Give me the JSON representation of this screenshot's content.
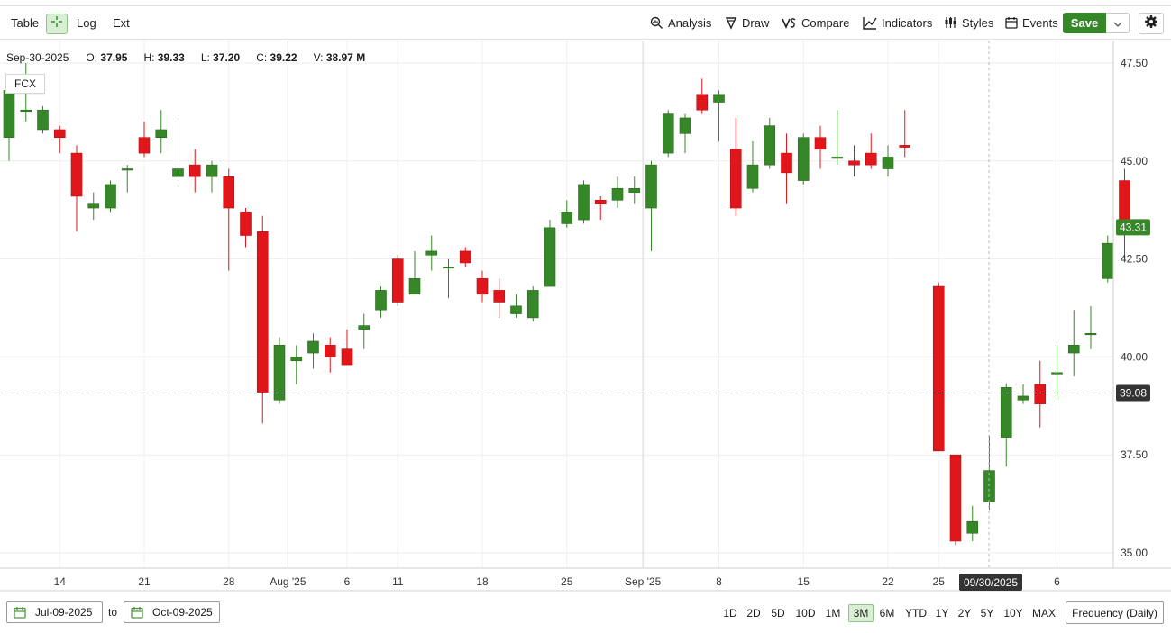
{
  "toolbar": {
    "table_label": "Table",
    "log_label": "Log",
    "ext_label": "Ext",
    "analysis_label": "Analysis",
    "draw_label": "Draw",
    "compare_label": "Compare",
    "indicators_label": "Indicators",
    "styles_label": "Styles",
    "events_label": "Events",
    "save_label": "Save"
  },
  "legend": {
    "date": "Sep-30-2025",
    "open_label": "O:",
    "open": "37.95",
    "high_label": "H:",
    "high": "39.33",
    "low_label": "L:",
    "low": "37.20",
    "close_label": "C:",
    "close": "39.22",
    "volume_label": "V:",
    "volume": "38.97 M"
  },
  "symbol": "FCX",
  "colors": {
    "up": "#368727",
    "down": "#e0161b",
    "accent": "#368727",
    "crosshair_tag": "#333333"
  },
  "chart_data": {
    "type": "candlestick",
    "y_range": [
      34.6,
      48.0
    ],
    "y_ticks": [
      "47.50",
      "45.00",
      "42.50",
      "40.00",
      "37.50",
      "35.00"
    ],
    "x_tick_labels": [
      "14",
      "21",
      "28",
      "Aug '25",
      "6",
      "11",
      "18",
      "25",
      "Sep '25",
      "8",
      "15",
      "22",
      "25",
      "6"
    ],
    "last_price": "43.31",
    "crosshair_price": "39.08",
    "crosshair_date": "09/30/2025",
    "candles": [
      {
        "o": 45.6,
        "h": 46.9,
        "l": 45.0,
        "c": 46.8
      },
      {
        "o": 46.3,
        "h": 47.5,
        "l": 46.0,
        "c": 46.3
      },
      {
        "o": 45.8,
        "h": 46.4,
        "l": 45.7,
        "c": 46.3
      },
      {
        "o": 45.8,
        "h": 45.9,
        "l": 45.2,
        "c": 45.6
      },
      {
        "o": 45.2,
        "h": 45.4,
        "l": 43.2,
        "c": 44.1
      },
      {
        "o": 43.8,
        "h": 44.2,
        "l": 43.5,
        "c": 43.9
      },
      {
        "o": 43.8,
        "h": 44.5,
        "l": 43.7,
        "c": 44.4
      },
      {
        "o": 44.8,
        "h": 44.9,
        "l": 44.2,
        "c": 44.8
      },
      {
        "o": 45.6,
        "h": 46.0,
        "l": 45.1,
        "c": 45.2
      },
      {
        "o": 45.6,
        "h": 46.3,
        "l": 45.2,
        "c": 45.8
      },
      {
        "o": 44.6,
        "h": 46.1,
        "l": 44.5,
        "c": 44.8
      },
      {
        "o": 44.9,
        "h": 45.3,
        "l": 44.2,
        "c": 44.6
      },
      {
        "o": 44.6,
        "h": 45.0,
        "l": 44.2,
        "c": 44.9
      },
      {
        "o": 44.6,
        "h": 44.8,
        "l": 42.2,
        "c": 43.8
      },
      {
        "o": 43.7,
        "h": 43.8,
        "l": 42.8,
        "c": 43.1
      },
      {
        "o": 43.2,
        "h": 43.6,
        "l": 38.3,
        "c": 39.1
      },
      {
        "o": 38.9,
        "h": 40.5,
        "l": 38.8,
        "c": 40.3
      },
      {
        "o": 39.9,
        "h": 40.3,
        "l": 39.3,
        "c": 40.0
      },
      {
        "o": 40.1,
        "h": 40.6,
        "l": 39.7,
        "c": 40.4
      },
      {
        "o": 40.3,
        "h": 40.5,
        "l": 39.6,
        "c": 40.0
      },
      {
        "o": 40.2,
        "h": 40.7,
        "l": 39.8,
        "c": 39.8
      },
      {
        "o": 40.7,
        "h": 41.1,
        "l": 40.2,
        "c": 40.8
      },
      {
        "o": 41.2,
        "h": 41.8,
        "l": 41.0,
        "c": 41.7
      },
      {
        "o": 42.5,
        "h": 42.6,
        "l": 41.3,
        "c": 41.4
      },
      {
        "o": 41.6,
        "h": 42.7,
        "l": 41.6,
        "c": 42.0
      },
      {
        "o": 42.6,
        "h": 43.1,
        "l": 42.2,
        "c": 42.7
      },
      {
        "o": 42.3,
        "h": 42.5,
        "l": 41.5,
        "c": 42.3
      },
      {
        "o": 42.7,
        "h": 42.8,
        "l": 42.3,
        "c": 42.4
      },
      {
        "o": 42.0,
        "h": 42.2,
        "l": 41.4,
        "c": 41.6
      },
      {
        "o": 41.7,
        "h": 42.0,
        "l": 41.0,
        "c": 41.4
      },
      {
        "o": 41.1,
        "h": 41.6,
        "l": 41.0,
        "c": 41.3
      },
      {
        "o": 41.0,
        "h": 41.8,
        "l": 40.9,
        "c": 41.7
      },
      {
        "o": 41.8,
        "h": 43.5,
        "l": 41.8,
        "c": 43.3
      },
      {
        "o": 43.4,
        "h": 44.0,
        "l": 43.3,
        "c": 43.7
      },
      {
        "o": 43.5,
        "h": 44.5,
        "l": 43.4,
        "c": 44.4
      },
      {
        "o": 44.0,
        "h": 44.1,
        "l": 43.5,
        "c": 43.9
      },
      {
        "o": 44.0,
        "h": 44.6,
        "l": 43.8,
        "c": 44.3
      },
      {
        "o": 44.2,
        "h": 44.6,
        "l": 43.9,
        "c": 44.3
      },
      {
        "o": 43.8,
        "h": 45.0,
        "l": 42.7,
        "c": 44.9
      },
      {
        "o": 45.2,
        "h": 46.3,
        "l": 45.1,
        "c": 46.2
      },
      {
        "o": 45.7,
        "h": 46.2,
        "l": 45.2,
        "c": 46.1
      },
      {
        "o": 46.7,
        "h": 47.1,
        "l": 46.2,
        "c": 46.3
      },
      {
        "o": 46.5,
        "h": 46.8,
        "l": 45.5,
        "c": 46.7
      },
      {
        "o": 45.3,
        "h": 46.1,
        "l": 43.6,
        "c": 43.8
      },
      {
        "o": 44.3,
        "h": 45.5,
        "l": 44.2,
        "c": 44.9
      },
      {
        "o": 44.9,
        "h": 46.1,
        "l": 44.8,
        "c": 45.9
      },
      {
        "o": 45.2,
        "h": 45.7,
        "l": 43.9,
        "c": 44.7
      },
      {
        "o": 44.5,
        "h": 45.7,
        "l": 44.4,
        "c": 45.6
      },
      {
        "o": 45.6,
        "h": 45.9,
        "l": 44.8,
        "c": 45.3
      },
      {
        "o": 45.1,
        "h": 46.3,
        "l": 44.9,
        "c": 45.1
      },
      {
        "o": 45.0,
        "h": 45.4,
        "l": 44.6,
        "c": 44.9
      },
      {
        "o": 45.2,
        "h": 45.7,
        "l": 44.8,
        "c": 44.9
      },
      {
        "o": 44.8,
        "h": 45.4,
        "l": 44.6,
        "c": 45.1
      },
      {
        "o": 45.4,
        "h": 46.3,
        "l": 45.1,
        "c": 45.35
      },
      null,
      {
        "o": 41.8,
        "h": 41.9,
        "l": 37.6,
        "c": 37.6
      },
      {
        "o": 37.5,
        "h": 37.5,
        "l": 35.2,
        "c": 35.3
      },
      {
        "o": 35.5,
        "h": 36.2,
        "l": 35.3,
        "c": 35.8
      },
      {
        "o": 36.3,
        "h": 38.0,
        "l": 36.1,
        "c": 37.1
      },
      {
        "o": 37.95,
        "h": 39.33,
        "l": 37.2,
        "c": 39.22
      },
      {
        "o": 38.9,
        "h": 39.3,
        "l": 38.8,
        "c": 39.0
      },
      {
        "o": 39.3,
        "h": 39.9,
        "l": 38.2,
        "c": 38.8
      },
      {
        "o": 39.6,
        "h": 40.3,
        "l": 38.9,
        "c": 39.6
      },
      {
        "o": 40.1,
        "h": 41.2,
        "l": 39.5,
        "c": 40.3
      },
      {
        "o": 40.6,
        "h": 41.3,
        "l": 40.2,
        "c": 40.6
      },
      {
        "o": 42.0,
        "h": 43.1,
        "l": 41.9,
        "c": 42.9
      },
      {
        "o": 44.5,
        "h": 44.8,
        "l": 42.5,
        "c": 43.31
      }
    ]
  },
  "bottom": {
    "from_date": "Jul-09-2025",
    "to_label": "to",
    "to_date": "Oct-09-2025",
    "ranges": [
      "1D",
      "2D",
      "5D",
      "10D",
      "1M",
      "3M",
      "6M",
      "YTD",
      "1Y",
      "2Y",
      "5Y",
      "10Y",
      "MAX"
    ],
    "active_range": "3M",
    "frequency_label": "Frequency (Daily)"
  }
}
